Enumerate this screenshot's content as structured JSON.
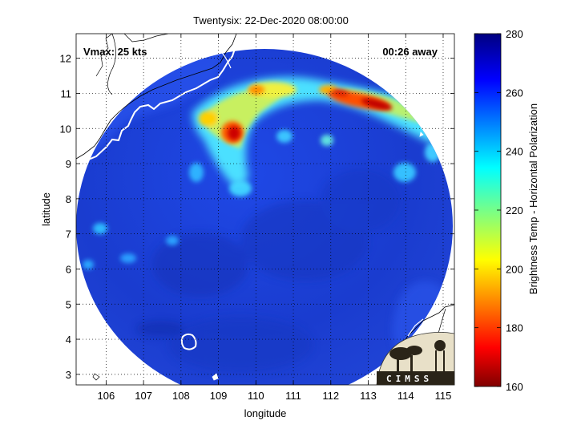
{
  "title": "Twentysix: 22-Dec-2020 08:00:00",
  "vmax_label": "Vmax: 25 kts",
  "time_label": "00:26 away",
  "xlabel": "longitude",
  "ylabel": "latitude",
  "colorbar_label": "Brightness Temp - Horizontal Polarization",
  "x_ticks": [
    "106",
    "107",
    "108",
    "109",
    "110",
    "111",
    "112",
    "113",
    "114",
    "115"
  ],
  "y_ticks": [
    "3",
    "4",
    "5",
    "6",
    "7",
    "8",
    "9",
    "10",
    "11",
    "12"
  ],
  "colorbar_ticks": [
    "160",
    "180",
    "200",
    "220",
    "240",
    "260",
    "280"
  ],
  "logo_text": "CIMSS",
  "colors": {
    "background_blue": "#1a3fd0",
    "cold_red": "#cc0000",
    "coast": "#ffffff",
    "land_outline": "#000000"
  },
  "map_data": {
    "lon_range": [
      105.2,
      115.3
    ],
    "lat_range": [
      2.7,
      12.7
    ],
    "colorbar_range": [
      160,
      280
    ],
    "swath_center": [
      110.3,
      7.5
    ],
    "swath_radius_lon": 5.1,
    "swath_radius_lat": 5.0,
    "grid": "dotted",
    "colormap": "jet"
  }
}
